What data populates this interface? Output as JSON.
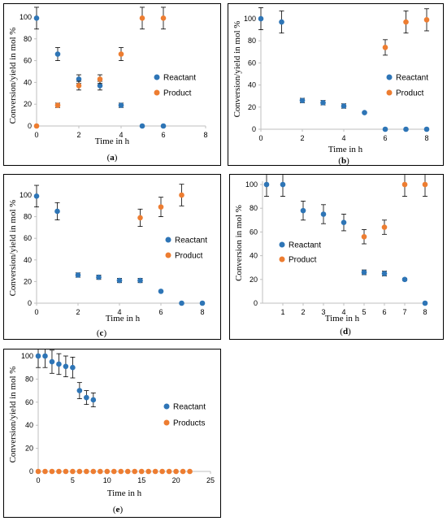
{
  "colors": {
    "reactant": "#2E75B6",
    "product": "#ED7D31",
    "axis": "#BFBFBF",
    "error": "#000000"
  },
  "chart_data": [
    {
      "id": "a",
      "type": "scatter",
      "caption": "a",
      "xlabel": "Time in h",
      "ylabel": "Conversion/yield in mol %",
      "xlim": [
        0,
        8
      ],
      "ylim": [
        0,
        100
      ],
      "xticks": [
        0,
        2,
        4,
        6,
        8
      ],
      "yticks": [
        0,
        20,
        40,
        60,
        80,
        100
      ],
      "legend_position": "right",
      "series": [
        {
          "name": "Reactant",
          "color_key": "reactant",
          "x": [
            0,
            1,
            2,
            3,
            4,
            5,
            6
          ],
          "y": [
            99,
            66,
            43,
            37,
            19,
            0,
            0
          ],
          "error": [
            10,
            6,
            4,
            4,
            2,
            0,
            0
          ]
        },
        {
          "name": "Product",
          "color_key": "product",
          "x": [
            0,
            1,
            2,
            3,
            4,
            5,
            6
          ],
          "y": [
            0,
            19,
            37,
            43,
            66,
            99,
            99
          ],
          "error": [
            0,
            2,
            4,
            4,
            6,
            10,
            10
          ]
        }
      ]
    },
    {
      "id": "b",
      "type": "scatter",
      "caption": "b",
      "xlabel": "Time in h",
      "ylabel": "Conversion/yield in mol %",
      "xlim": [
        0,
        8
      ],
      "ylim": [
        0,
        100
      ],
      "xticks": [
        0,
        2,
        4,
        6,
        8
      ],
      "yticks": [
        0,
        20,
        40,
        60,
        80,
        100
      ],
      "legend_position": "right",
      "series": [
        {
          "name": "Reactant",
          "color_key": "reactant",
          "x": [
            0,
            1,
            2,
            3,
            4,
            5,
            6,
            7,
            8
          ],
          "y": [
            100,
            97,
            26,
            24,
            21,
            15,
            0,
            0,
            0
          ],
          "error": [
            10,
            10,
            2,
            2,
            2,
            0,
            0,
            0,
            0
          ]
        },
        {
          "name": "Product",
          "color_key": "product",
          "x": [
            6,
            7,
            8
          ],
          "y": [
            74,
            97,
            99
          ],
          "error": [
            7,
            10,
            10
          ]
        }
      ]
    },
    {
      "id": "c",
      "type": "scatter",
      "caption": "c",
      "xlabel": "Time in h",
      "ylabel": "Conversion/yield in mol %",
      "xlim": [
        0,
        8
      ],
      "ylim": [
        0,
        100
      ],
      "xticks": [
        0,
        2,
        4,
        6,
        8
      ],
      "yticks": [
        0,
        20,
        40,
        60,
        80,
        100
      ],
      "legend_position": "right",
      "series": [
        {
          "name": "Reactant",
          "color_key": "reactant",
          "x": [
            0,
            1,
            2,
            3,
            4,
            5,
            6,
            7,
            8
          ],
          "y": [
            99,
            85,
            26,
            24,
            21,
            21,
            11,
            0,
            0
          ],
          "error": [
            10,
            8,
            2,
            2,
            2,
            2,
            0,
            0,
            0
          ]
        },
        {
          "name": "Product",
          "color_key": "product",
          "x": [
            5,
            6,
            7
          ],
          "y": [
            79,
            89,
            100
          ],
          "error": [
            8,
            9,
            10
          ]
        }
      ]
    },
    {
      "id": "d",
      "type": "scatter",
      "caption": "d",
      "xlabel": "Time in h",
      "ylabel": "Conversion in mol %",
      "xlim": [
        0,
        8
      ],
      "ylim": [
        0,
        100
      ],
      "xticks": [
        1,
        2,
        3,
        4,
        5,
        6,
        7,
        8
      ],
      "yticks": [
        0,
        20,
        40,
        60,
        80,
        100
      ],
      "legend_position": "left",
      "series": [
        {
          "name": "Reactant",
          "color_key": "reactant",
          "x": [
            0.2,
            1,
            2,
            3,
            4,
            5,
            6,
            7,
            8
          ],
          "y": [
            100,
            100,
            78,
            75,
            68,
            26,
            25,
            20,
            0
          ],
          "error": [
            10,
            10,
            8,
            8,
            7,
            2,
            2,
            1,
            0
          ]
        },
        {
          "name": "Product",
          "color_key": "product",
          "x": [
            5,
            6,
            7,
            8
          ],
          "y": [
            56,
            64,
            100,
            100
          ],
          "error": [
            6,
            6,
            10,
            10
          ]
        }
      ]
    },
    {
      "id": "e",
      "type": "scatter",
      "caption": "e",
      "xlabel": "Time in h",
      "ylabel": "Conversion/yield in mol %",
      "xlim": [
        0,
        25
      ],
      "ylim": [
        0,
        100
      ],
      "xticks": [
        0,
        5,
        10,
        15,
        20,
        25
      ],
      "yticks": [
        0,
        20,
        40,
        60,
        80,
        100
      ],
      "legend_position": "right",
      "series": [
        {
          "name": "Reactant",
          "color_key": "reactant",
          "x": [
            0,
            1,
            2,
            3,
            4,
            5,
            6,
            7,
            8
          ],
          "y": [
            100,
            100,
            95,
            93,
            91,
            90,
            70,
            64,
            62
          ],
          "error": [
            10,
            10,
            10,
            9,
            9,
            9,
            7,
            6,
            6
          ]
        },
        {
          "name": "Products",
          "color_key": "product",
          "x": [
            0,
            1,
            2,
            3,
            4,
            5,
            6,
            7,
            8,
            9,
            10,
            11,
            12,
            13,
            14,
            15,
            16,
            17,
            18,
            19,
            20,
            21,
            22
          ],
          "y": [
            0,
            0,
            0,
            0,
            0,
            0,
            0,
            0,
            0,
            0,
            0,
            0,
            0,
            0,
            0,
            0,
            0,
            0,
            0,
            0,
            0,
            0,
            0
          ],
          "error": []
        }
      ]
    }
  ]
}
